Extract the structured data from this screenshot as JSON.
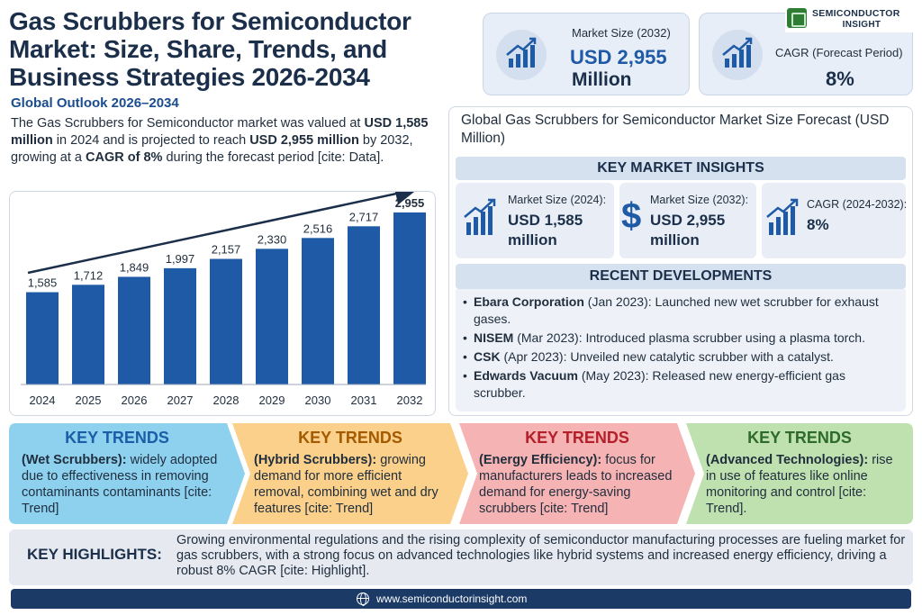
{
  "header": {
    "title": "Gas Scrubbers for Semiconductor Market: Size, Share, Trends, and Business Strategies 2026-2034",
    "subtitle": "Global Outlook 2026–2034"
  },
  "intro": {
    "p1": "The Gas Scrubbers for Semiconductor market was valued at ",
    "v1": "USD 1,585 million",
    "p2": " in 2024 and is projected to reach ",
    "v2": "USD 2,955 million",
    "p3": " by 2032, growing at a ",
    "v3": "CAGR of 8%",
    "p4": " during the forecast period [cite: Data]."
  },
  "kpis": {
    "market_size_label": "Market Size (2032)",
    "market_size_value": "USD 2,955",
    "market_size_unit": "Million",
    "cagr_label": "CAGR (Forecast Period)",
    "cagr_value": "8%"
  },
  "logo": {
    "line1": "SEMICONDUCTOR",
    "line2": "INSIGHT"
  },
  "forecast": {
    "title": "Global Gas Scrubbers for Semiconductor Market Size Forecast (USD Million)"
  },
  "key_insights": {
    "heading": "KEY MARKET INSIGHTS",
    "items": [
      {
        "label": "Market Size (2024):",
        "value": "USD 1,585 million",
        "icon": "growth-chart-icon"
      },
      {
        "label": "Market Size (2032):",
        "value": "USD 2,955 million",
        "icon": "dollar-icon"
      },
      {
        "label": "CAGR (2024-2032):",
        "value": "8%",
        "icon": "growth-chart-icon"
      }
    ]
  },
  "recent_developments": {
    "heading": "RECENT DEVELOPMENTS",
    "items": [
      {
        "company": "Ebara Corporation",
        "text": " (Jan 2023): Launched new wet scrubber for exhaust gases."
      },
      {
        "company": "NISEM",
        "text": " (Mar 2023): Introduced plasma scrubber using a plasma torch."
      },
      {
        "company": "CSK",
        "text": " (Apr 2023): Unveiled new catalytic scrubber with a catalyst."
      },
      {
        "company": "Edwards Vacuum",
        "text": " (May 2023): Released new energy-efficient gas scrubber."
      }
    ]
  },
  "trends": [
    {
      "heading": "KEY TRENDS",
      "bold": "(Wet Scrubbers):",
      "text": " widely adopted due to effectiveness in removing contaminants contaminants [cite: Trend]",
      "color": "#8ed1ef",
      "head_color": "#1b5ea8"
    },
    {
      "heading": "KEY TRENDS",
      "bold": "(Hybrid Scrubbers):",
      "text": " growing demand for more efficient removal, combining wet and dry features [cite: Trend]",
      "color": "#fbd08a",
      "head_color": "#a35a00"
    },
    {
      "heading": "KEY TRENDS",
      "bold": "(Energy Efficiency):",
      "text": " focus for manufacturers leads to increased demand for energy-saving scrubbers [cite: Trend]",
      "color": "#f6b3b3",
      "head_color": "#b3202a"
    },
    {
      "heading": "KEY TRENDS",
      "bold": "(Advanced Technologies):",
      "text": " rise in use of features like online monitoring and control [cite: Trend].",
      "color": "#bfe1b0",
      "head_color": "#2e6b2a"
    }
  ],
  "highlights": {
    "label": "KEY HIGHLIGHTS:",
    "text": "Growing environmental regulations and the rising complexity of semiconductor manufacturing processes are fueling market for gas scrubbers, with a strong focus on advanced technologies like hybrid systems and increased energy efficiency, driving a robust 8% CAGR [cite: Highlight]."
  },
  "footer": {
    "url": "www.semiconductorinsight.com"
  },
  "chart_data": {
    "type": "bar",
    "categories": [
      "2024",
      "2025",
      "2026",
      "2027",
      "2028",
      "2029",
      "2030",
      "2031",
      "2032"
    ],
    "values": [
      1585,
      1712,
      1849,
      1997,
      2157,
      2330,
      2516,
      2717,
      2955
    ],
    "value_labels": [
      "1,585",
      "1,712",
      "1,849",
      "1,997",
      "2,157",
      "2,330",
      "2,516",
      "2,717",
      "2,955"
    ],
    "title": "Global Gas Scrubbers for Semiconductor Market Size Forecast (USD Million)",
    "xlabel": "",
    "ylabel": "",
    "ylim": [
      0,
      3000
    ],
    "grid": false,
    "trend_arrow": true,
    "bar_color": "#1f5aa6"
  }
}
